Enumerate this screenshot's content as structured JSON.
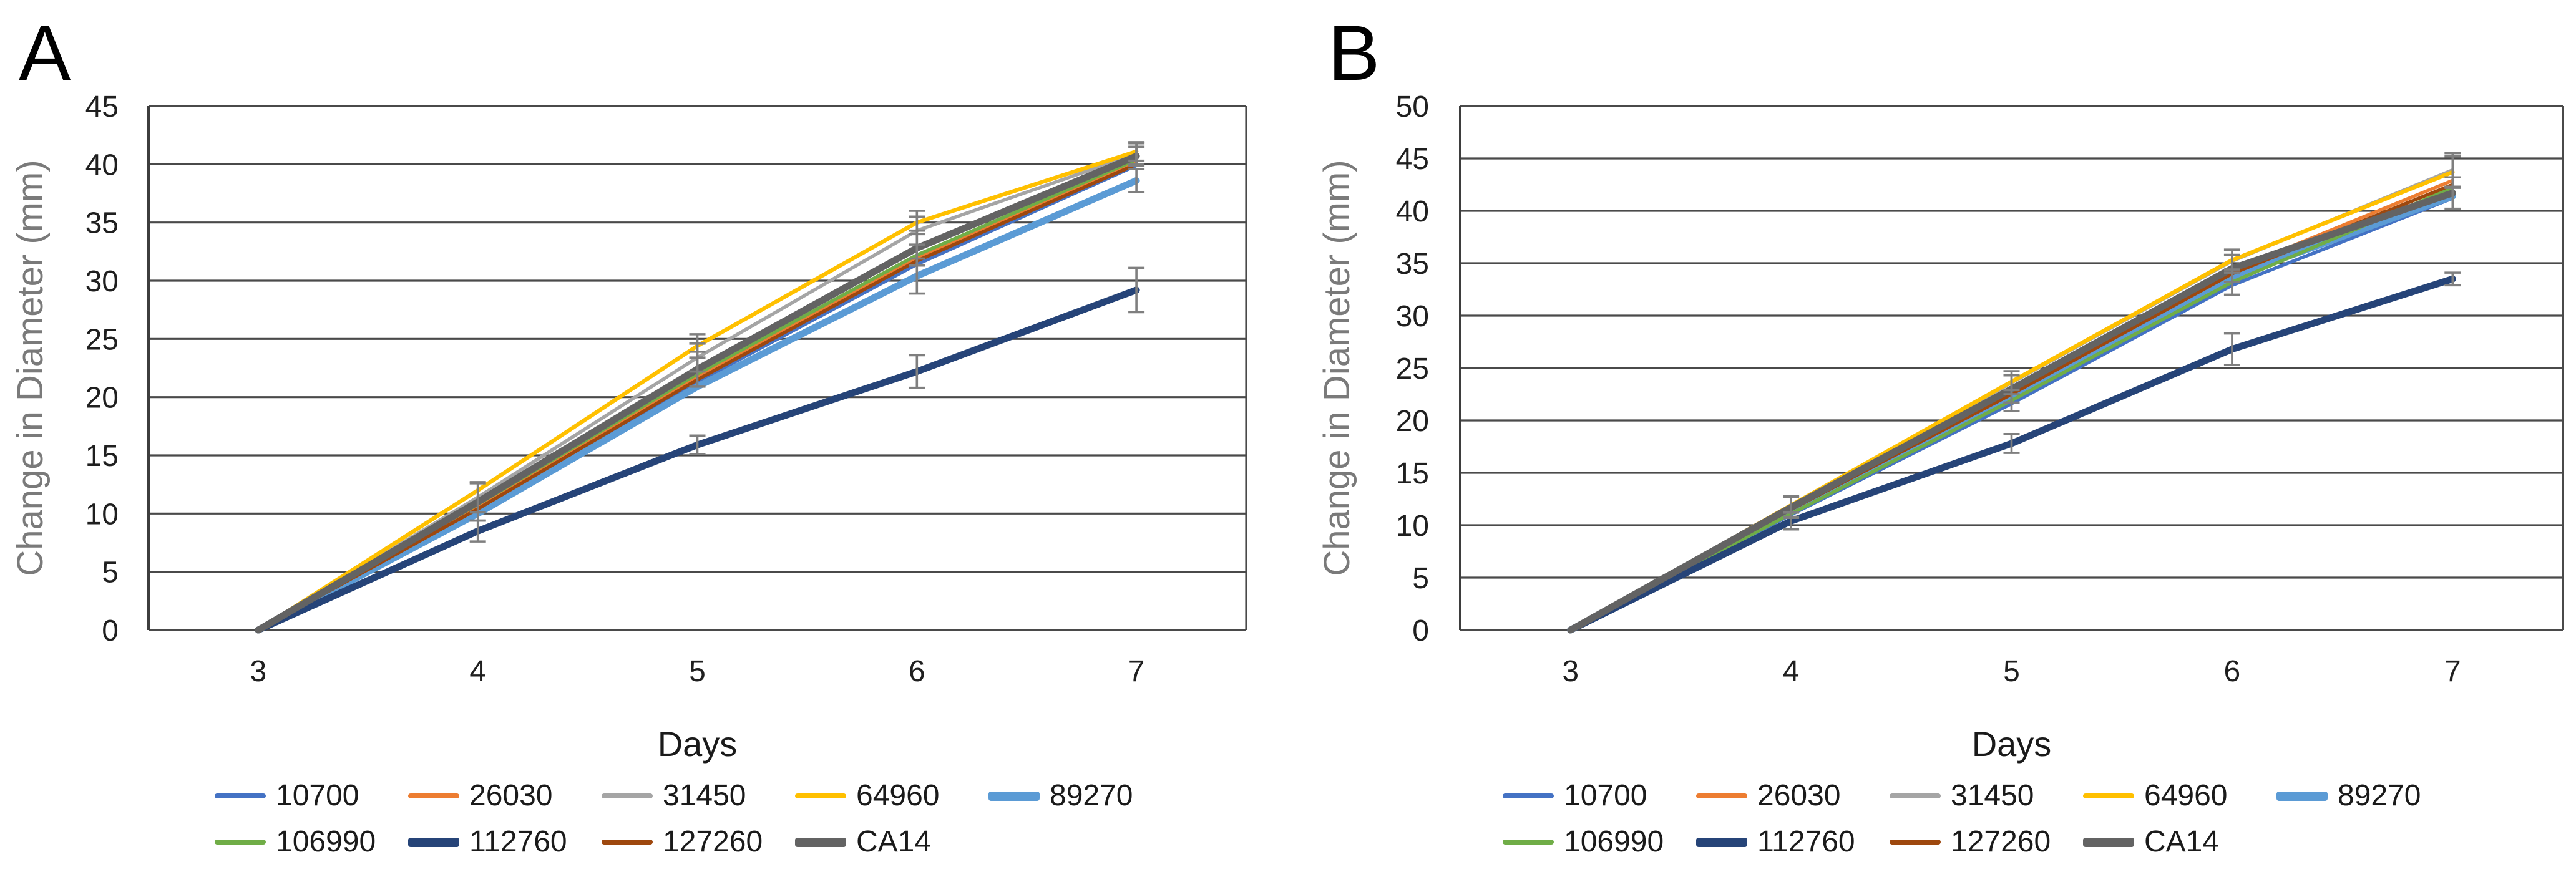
{
  "figure": {
    "background": "#ffffff",
    "gridline_color": "#4a4a4a",
    "axis_color": "#3d3d3d",
    "error_bar_color": "#7f7f7f",
    "tick_label_color": "#1f1f1f",
    "axis_title_color": "#7a7a7a",
    "x_title_color": "#1a1a1a",
    "panel_letter_color": "#000000"
  },
  "chart_data": [
    {
      "panel": "A",
      "type": "line",
      "x_label": "Days",
      "y_label": "Change in Diameter (mm)",
      "x": [
        3,
        4,
        5,
        6,
        7
      ],
      "ylim": [
        0,
        45
      ],
      "ytick_step": 5,
      "grid": true,
      "legend_position": "bottom",
      "series": [
        {
          "name": "10700",
          "color": "#4472C4",
          "width": 5.5,
          "values": [
            0,
            10.4,
            21.3,
            31.4,
            39.9
          ],
          "errors": [
            null,
            null,
            null,
            null,
            null
          ]
        },
        {
          "name": "26030",
          "color": "#ED7D31",
          "width": 5.5,
          "values": [
            0,
            10.6,
            21.8,
            32.0,
            40.1
          ],
          "errors": [
            null,
            null,
            null,
            null,
            null
          ]
        },
        {
          "name": "31450",
          "color": "#A5A5A5",
          "width": 5.5,
          "values": [
            0,
            11.4,
            23.4,
            34.3,
            40.9
          ],
          "errors": [
            null,
            1.3,
            1.2,
            1.2,
            0.9
          ]
        },
        {
          "name": "64960",
          "color": "#FFC000",
          "width": 6.5,
          "values": [
            0,
            12.0,
            24.4,
            35.0,
            41.1
          ],
          "errors": [
            null,
            null,
            1.0,
            1.0,
            0.8
          ]
        },
        {
          "name": "89270",
          "color": "#5B9BD5",
          "width": 11,
          "values": [
            0,
            10.0,
            20.9,
            30.4,
            38.6
          ],
          "errors": [
            null,
            null,
            null,
            1.5,
            1.0
          ]
        },
        {
          "name": "106990",
          "color": "#70AD47",
          "width": 5.5,
          "values": [
            0,
            10.8,
            22.0,
            32.2,
            40.4
          ],
          "errors": [
            null,
            null,
            null,
            null,
            null
          ]
        },
        {
          "name": "112760",
          "color": "#264478",
          "width": 11,
          "values": [
            0,
            8.5,
            15.9,
            22.2,
            29.2
          ],
          "errors": [
            null,
            0.9,
            0.8,
            1.4,
            1.9
          ]
        },
        {
          "name": "127260",
          "color": "#9E480E",
          "width": 5.5,
          "values": [
            0,
            10.4,
            21.5,
            31.7,
            40.0
          ],
          "errors": [
            null,
            null,
            null,
            null,
            null
          ]
        },
        {
          "name": "CA14",
          "color": "#636363",
          "width": 11,
          "values": [
            0,
            11.0,
            22.4,
            32.8,
            40.7
          ],
          "errors": [
            null,
            1.6,
            1.5,
            1.5,
            0.8
          ]
        }
      ]
    },
    {
      "panel": "B",
      "type": "line",
      "x_label": "Days",
      "y_label": "Change in Diameter (mm)",
      "x": [
        3,
        4,
        5,
        6,
        7
      ],
      "ylim": [
        0,
        50
      ],
      "ytick_step": 5,
      "grid": true,
      "legend_position": "bottom",
      "series": [
        {
          "name": "10700",
          "color": "#4472C4",
          "width": 5.5,
          "values": [
            0,
            11.0,
            21.6,
            32.9,
            41.2
          ],
          "errors": [
            null,
            null,
            null,
            null,
            null
          ]
        },
        {
          "name": "26030",
          "color": "#ED7D31",
          "width": 5.5,
          "values": [
            0,
            11.6,
            22.8,
            34.3,
            42.9
          ],
          "errors": [
            null,
            null,
            null,
            null,
            null
          ]
        },
        {
          "name": "31450",
          "color": "#A5A5A5",
          "width": 5.5,
          "values": [
            0,
            11.8,
            23.6,
            35.2,
            43.9
          ],
          "errors": [
            null,
            1.0,
            1.1,
            1.1,
            1.6
          ]
        },
        {
          "name": "64960",
          "color": "#FFC000",
          "width": 6.5,
          "values": [
            0,
            11.9,
            23.7,
            35.3,
            43.7
          ],
          "errors": [
            null,
            null,
            null,
            null,
            1.5
          ]
        },
        {
          "name": "89270",
          "color": "#5B9BD5",
          "width": 11,
          "values": [
            0,
            11.3,
            22.2,
            33.7,
            41.4
          ],
          "errors": [
            null,
            null,
            null,
            null,
            null
          ]
        },
        {
          "name": "106990",
          "color": "#70AD47",
          "width": 5.5,
          "values": [
            0,
            11.1,
            21.9,
            33.2,
            42.2
          ],
          "errors": [
            null,
            null,
            1.0,
            1.2,
            null
          ]
        },
        {
          "name": "112760",
          "color": "#264478",
          "width": 11,
          "values": [
            0,
            10.4,
            17.8,
            26.8,
            33.5
          ],
          "errors": [
            null,
            0.8,
            0.9,
            1.5,
            0.6
          ]
        },
        {
          "name": "127260",
          "color": "#9E480E",
          "width": 5.5,
          "values": [
            0,
            11.5,
            22.5,
            34.0,
            42.5
          ],
          "errors": [
            null,
            null,
            null,
            null,
            null
          ]
        },
        {
          "name": "CA14",
          "color": "#636363",
          "width": 11,
          "values": [
            0,
            11.7,
            23.0,
            34.5,
            41.7
          ],
          "errors": [
            null,
            1.0,
            1.3,
            1.3,
            1.5
          ]
        }
      ]
    }
  ],
  "legend_rows": [
    5,
    4
  ]
}
